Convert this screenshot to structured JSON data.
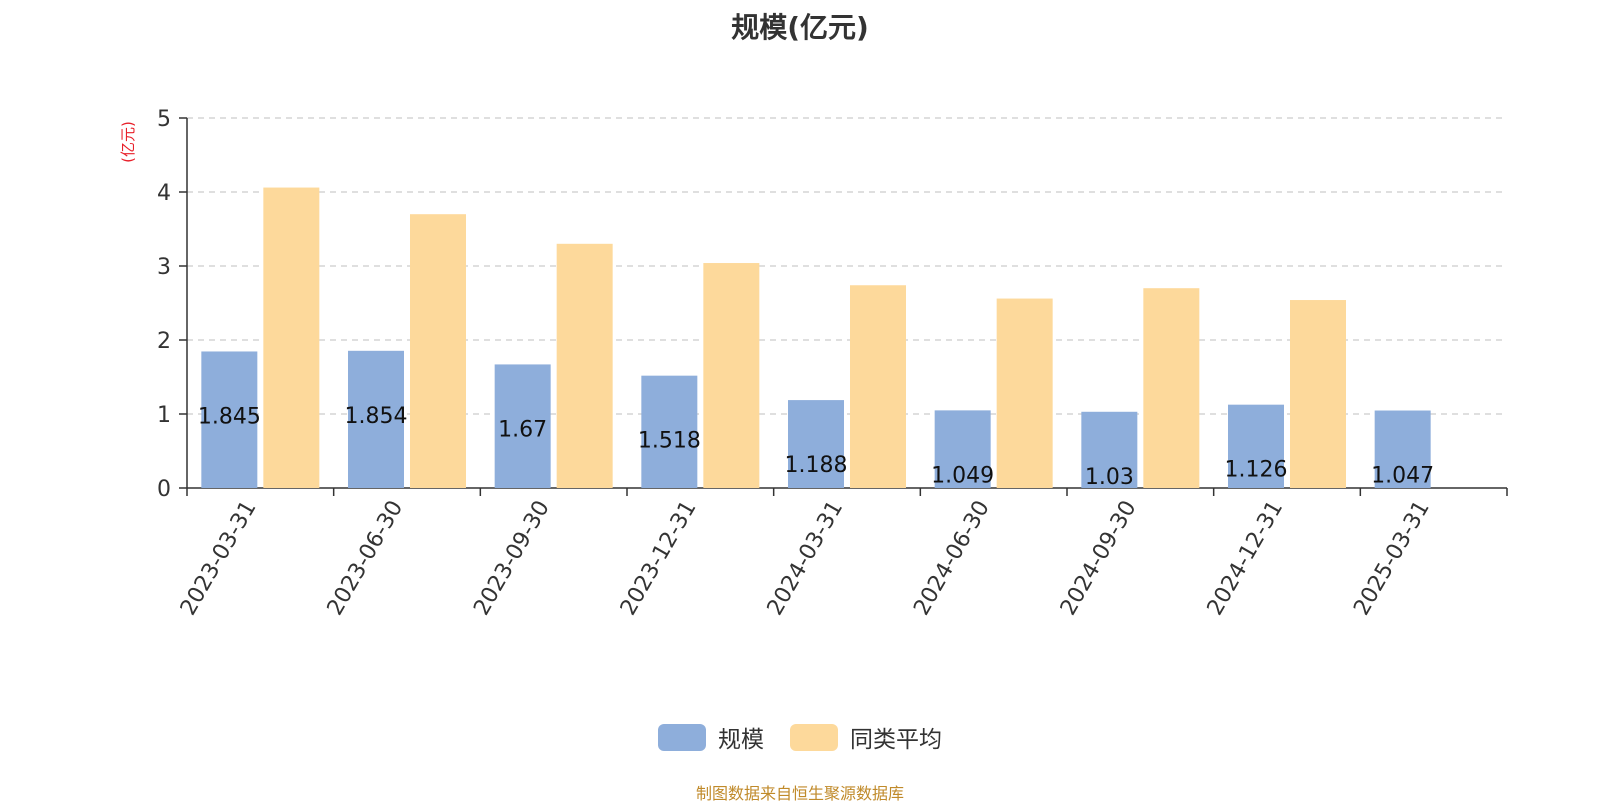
{
  "chart_data": {
    "type": "bar",
    "title": "规模(亿元)",
    "ylabel": "(亿元)",
    "xlabel": "",
    "categories": [
      "2023-03-31",
      "2023-06-30",
      "2023-09-30",
      "2023-12-31",
      "2024-03-31",
      "2024-06-30",
      "2024-09-30",
      "2024-12-31",
      "2025-03-31"
    ],
    "series": [
      {
        "name": "规模",
        "color": "#8eaedb",
        "values": [
          1.845,
          1.854,
          1.67,
          1.518,
          1.188,
          1.049,
          1.03,
          1.126,
          1.047
        ],
        "labels": [
          "1.845",
          "1.854",
          "1.67",
          "1.518",
          "1.188",
          "1.049",
          "1.03",
          "1.126",
          "1.047"
        ]
      },
      {
        "name": "同类平均",
        "color": "#fdd99b",
        "values": [
          4.06,
          3.7,
          3.3,
          3.04,
          2.74,
          2.56,
          2.7,
          2.54,
          null
        ]
      }
    ],
    "yticks": [
      "0",
      "1",
      "2",
      "3",
      "4",
      "5"
    ],
    "ylim": [
      0,
      5
    ],
    "grid": true,
    "legend_position": "bottom-center"
  },
  "footer": "制图数据来自恒生聚源数据库"
}
